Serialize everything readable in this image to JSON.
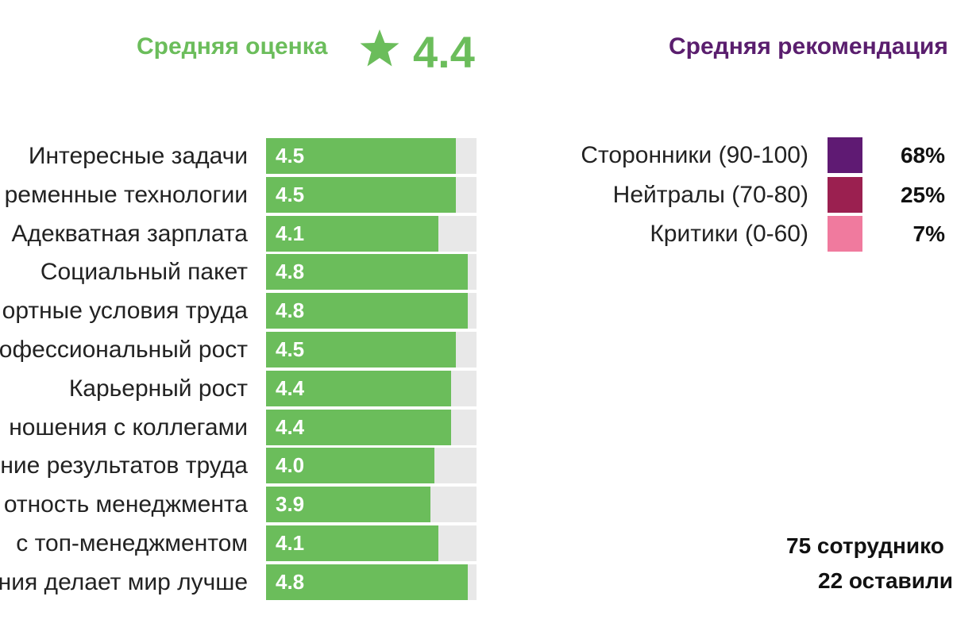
{
  "header": {
    "avg_title": "Средняя оценка",
    "avg_value": "4.4",
    "recommend_title": "Средняя рекомендация"
  },
  "colors": {
    "accent_green": "#6bbd5b",
    "track_gray": "#e8e8e8",
    "promoters": "#5f1a73",
    "neutrals": "#9b2050",
    "critics": "#f07a9e"
  },
  "chart_data": [
    {
      "type": "bar",
      "orientation": "horizontal",
      "categories": [
        "Интересные задачи",
        "ременные технологии",
        "Адекватная зарплата",
        "Социальный пакет",
        "ортные условия труда",
        "офессиональный рост",
        "Карьерный рост",
        "ношения с коллегами",
        "ние результатов труда",
        "отность менеджмента",
        "с топ-менеджментом",
        "ния делает мир лучше"
      ],
      "values": [
        4.5,
        4.5,
        4.1,
        4.8,
        4.8,
        4.5,
        4.4,
        4.4,
        4.0,
        3.9,
        4.1,
        4.8
      ],
      "value_labels": [
        "4.5",
        "4.5",
        "4.1",
        "4.8",
        "4.8",
        "4.5",
        "4.4",
        "4.4",
        "4.0",
        "3.9",
        "4.1",
        "4.8"
      ],
      "xlim": [
        0,
        5
      ]
    },
    {
      "type": "table",
      "rows": [
        {
          "label": "Сторонники (90-100)",
          "value": 68,
          "display": "68%",
          "color_key": "promoters"
        },
        {
          "label": "Нейтралы (70-80)",
          "value": 25,
          "display": "25%",
          "color_key": "neutrals"
        },
        {
          "label": "Критики (0-60)",
          "value": 7,
          "display": "7%",
          "color_key": "critics"
        }
      ]
    }
  ],
  "footer": {
    "line1": "75 сотруднико",
    "line2": "22 оставили"
  }
}
